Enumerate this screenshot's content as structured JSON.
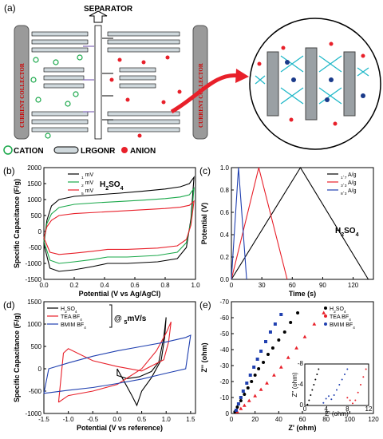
{
  "figure": {
    "panel_a": {
      "label": "(a)",
      "separator": "SEPARATOR",
      "current_collector": "CURRENT COLLECTOR",
      "legend": {
        "cation": "CATION",
        "lrgonr": "LRGONR",
        "anion": "ANION"
      }
    }
  },
  "colors": {
    "black": "#000000",
    "red": "#e8202a",
    "blue": "#2040b0",
    "green": "#1aa84a",
    "cyan": "#20b8c8"
  },
  "chart_data": [
    {
      "id": "b",
      "panel_label": "(b)",
      "type": "line",
      "xlabel": "Potential (V vs Ag/AgCl)",
      "ylabel": "Specific Capacitance (F/g)",
      "xlim": [
        0.0,
        1.0
      ],
      "ylim": [
        -1500,
        2000
      ],
      "xticks": [
        0.0,
        0.2,
        0.4,
        0.6,
        0.8,
        1.0
      ],
      "xticklabels": [
        "0.0",
        "0.2",
        "0.4",
        "0.6",
        "0.8",
        "1.0"
      ],
      "yticks": [
        -1500,
        -1000,
        -500,
        0,
        500,
        1000,
        1500,
        2000
      ],
      "yticklabels": [
        "-1500",
        "-1000",
        "-500",
        "0",
        "500",
        "1000",
        "1500",
        "2000"
      ],
      "annotation": "H2SO4",
      "series": [
        {
          "name": "1 mV",
          "color": "#000000",
          "upper": [
            [
              0.0,
              -400
            ],
            [
              0.02,
              350
            ],
            [
              0.05,
              800
            ],
            [
              0.1,
              1000
            ],
            [
              0.2,
              1100
            ],
            [
              0.35,
              1150
            ],
            [
              0.5,
              1200
            ],
            [
              0.65,
              1260
            ],
            [
              0.8,
              1330
            ],
            [
              0.9,
              1400
            ],
            [
              0.96,
              1500
            ],
            [
              0.99,
              1700
            ]
          ],
          "lower": [
            [
              0.99,
              1700
            ],
            [
              0.97,
              400
            ],
            [
              0.94,
              -500
            ],
            [
              0.88,
              -850
            ],
            [
              0.75,
              -950
            ],
            [
              0.55,
              -1000
            ],
            [
              0.42,
              -1000
            ],
            [
              0.32,
              -1100
            ],
            [
              0.2,
              -1200
            ],
            [
              0.1,
              -1250
            ],
            [
              0.04,
              -1150
            ],
            [
              0.0,
              -400
            ]
          ]
        },
        {
          "name": "2 mV",
          "color": "#1aa84a",
          "upper": [
            [
              0.0,
              -300
            ],
            [
              0.02,
              250
            ],
            [
              0.05,
              550
            ],
            [
              0.1,
              750
            ],
            [
              0.2,
              850
            ],
            [
              0.35,
              900
            ],
            [
              0.5,
              940
            ],
            [
              0.65,
              980
            ],
            [
              0.8,
              1030
            ],
            [
              0.9,
              1080
            ],
            [
              0.96,
              1150
            ],
            [
              0.99,
              1350
            ]
          ],
          "lower": [
            [
              0.99,
              1350
            ],
            [
              0.97,
              300
            ],
            [
              0.94,
              -350
            ],
            [
              0.88,
              -650
            ],
            [
              0.75,
              -750
            ],
            [
              0.55,
              -800
            ],
            [
              0.42,
              -800
            ],
            [
              0.32,
              -880
            ],
            [
              0.2,
              -950
            ],
            [
              0.1,
              -1000
            ],
            [
              0.04,
              -900
            ],
            [
              0.0,
              -300
            ]
          ]
        },
        {
          "name": "5 mV",
          "color": "#e8202a",
          "upper": [
            [
              0.0,
              -200
            ],
            [
              0.02,
              150
            ],
            [
              0.05,
              350
            ],
            [
              0.1,
              500
            ],
            [
              0.2,
              560
            ],
            [
              0.35,
              600
            ],
            [
              0.5,
              640
            ],
            [
              0.65,
              680
            ],
            [
              0.8,
              720
            ],
            [
              0.9,
              760
            ],
            [
              0.96,
              820
            ],
            [
              0.99,
              950
            ]
          ],
          "lower": [
            [
              0.99,
              950
            ],
            [
              0.97,
              200
            ],
            [
              0.94,
              -250
            ],
            [
              0.88,
              -450
            ],
            [
              0.75,
              -520
            ],
            [
              0.55,
              -560
            ],
            [
              0.42,
              -560
            ],
            [
              0.32,
              -620
            ],
            [
              0.2,
              -680
            ],
            [
              0.1,
              -720
            ],
            [
              0.04,
              -650
            ],
            [
              0.0,
              -200
            ]
          ]
        }
      ]
    },
    {
      "id": "c",
      "panel_label": "(c)",
      "type": "line",
      "xlabel": "Time (s)",
      "ylabel": "Potential (V)",
      "xlim": [
        0,
        140
      ],
      "ylim": [
        0.0,
        1.0
      ],
      "xticks": [
        0,
        30,
        60,
        90,
        120
      ],
      "xticklabels": [
        "0",
        "30",
        "60",
        "90",
        "120"
      ],
      "yticks": [
        0.0,
        0.2,
        0.4,
        0.6,
        0.8,
        1.0
      ],
      "yticklabels": [
        "0.0",
        "0.2",
        "0.4",
        "0.6",
        "0.8",
        "1.0"
      ],
      "annotation": "H2SO4",
      "series": [
        {
          "name": "1.7 A/g",
          "color": "#000000",
          "points": [
            [
              0,
              0
            ],
            [
              68,
              1.0
            ],
            [
              135,
              0
            ]
          ]
        },
        {
          "name": "3.3 A/g",
          "color": "#e8202a",
          "points": [
            [
              0,
              0
            ],
            [
              27,
              1.0
            ],
            [
              55,
              0
            ]
          ]
        },
        {
          "name": "8.3 A/g",
          "color": "#2040b0",
          "points": [
            [
              0,
              0
            ],
            [
              7,
              1.0
            ],
            [
              15,
              0
            ]
          ]
        }
      ]
    },
    {
      "id": "d",
      "panel_label": "(d)",
      "type": "line",
      "xlabel": "Potential (V vs reference)",
      "ylabel": "Specific Capacitance (F/g)",
      "xlim": [
        -1.5,
        1.6
      ],
      "ylim": [
        -1000,
        1500
      ],
      "xticks": [
        -1.5,
        -1.0,
        -0.5,
        0.0,
        0.5,
        1.0,
        1.5
      ],
      "xticklabels": [
        "-1.5",
        "-1.0",
        "-0.5",
        "0.0",
        "0.5",
        "1.0",
        "1.5"
      ],
      "yticks": [
        -1000,
        -500,
        0,
        500,
        1000,
        1500
      ],
      "yticklabels": [
        "-1000",
        "-500",
        "0",
        "500",
        "1000",
        "1500"
      ],
      "annotation": "@ 5mV/s",
      "series": [
        {
          "name": "H2SO4",
          "color": "#000000",
          "points": [
            [
              0,
              0
            ],
            [
              0,
              -150
            ],
            [
              0.2,
              -220
            ],
            [
              0.45,
              -180
            ],
            [
              0.7,
              -60
            ],
            [
              0.85,
              150
            ],
            [
              0.95,
              700
            ],
            [
              1.0,
              1150
            ],
            [
              0.97,
              700
            ],
            [
              0.9,
              200
            ],
            [
              0.7,
              -200
            ],
            [
              0.5,
              -500
            ],
            [
              0.4,
              -820
            ],
            [
              0.3,
              -600
            ],
            [
              0.15,
              -300
            ],
            [
              0,
              0
            ]
          ]
        },
        {
          "name": "TEA BF4",
          "color": "#e8202a",
          "points": [
            [
              -1.2,
              -750
            ],
            [
              -1.0,
              -600
            ],
            [
              -0.5,
              -500
            ],
            [
              0.0,
              -350
            ],
            [
              0.5,
              0
            ],
            [
              0.8,
              400
            ],
            [
              1.0,
              800
            ],
            [
              1.1,
              1050
            ],
            [
              1.05,
              600
            ],
            [
              0.95,
              200
            ],
            [
              0.5,
              -50
            ],
            [
              0.0,
              50
            ],
            [
              -0.5,
              180
            ],
            [
              -1.0,
              450
            ],
            [
              -1.1,
              350
            ],
            [
              -1.2,
              -750
            ]
          ]
        },
        {
          "name": "BMIM BF4",
          "color": "#2040b0",
          "points": [
            [
              -1.5,
              -550
            ],
            [
              -1.0,
              -480
            ],
            [
              -0.5,
              -420
            ],
            [
              0.0,
              -330
            ],
            [
              0.5,
              -230
            ],
            [
              1.0,
              -100
            ],
            [
              1.4,
              0
            ],
            [
              1.5,
              750
            ],
            [
              1.4,
              700
            ],
            [
              1.0,
              600
            ],
            [
              0.5,
              500
            ],
            [
              0.0,
              400
            ],
            [
              -0.5,
              280
            ],
            [
              -1.0,
              130
            ],
            [
              -1.4,
              0
            ],
            [
              -1.5,
              -550
            ]
          ]
        }
      ]
    },
    {
      "id": "e",
      "panel_label": "(e)",
      "type": "scatter",
      "xlabel": "Z' (ohm)",
      "ylabel": "Z'' (ohm)",
      "xlim": [
        0,
        120
      ],
      "ylim": [
        0,
        -70
      ],
      "xticks": [
        0,
        20,
        40,
        60,
        80,
        100,
        120
      ],
      "xticklabels": [
        "0",
        "20",
        "40",
        "60",
        "80",
        "100",
        "120"
      ],
      "yticks": [
        0,
        -10,
        -20,
        -30,
        -40,
        -50,
        -60,
        -70
      ],
      "yticklabels": [
        "0",
        "-10",
        "-20",
        "-30",
        "-40",
        "-50",
        "-60",
        "-70"
      ],
      "series": [
        {
          "name": "H2SO4",
          "color": "#000000",
          "marker": "circle",
          "points": [
            [
              3,
              -1
            ],
            [
              5,
              -4
            ],
            [
              8,
              -8
            ],
            [
              11,
              -12
            ],
            [
              14,
              -16
            ],
            [
              17,
              -20
            ],
            [
              20,
              -24
            ],
            [
              23,
              -28
            ],
            [
              27,
              -32
            ],
            [
              31,
              -37
            ],
            [
              35,
              -41
            ],
            [
              40,
              -46
            ],
            [
              45,
              -51
            ],
            [
              50,
              -57
            ],
            [
              56,
              -63
            ]
          ]
        },
        {
          "name": "TEA BF4",
          "color": "#e8202a",
          "marker": "triangle",
          "points": [
            [
              5,
              -1
            ],
            [
              8,
              -3
            ],
            [
              11,
              -5
            ],
            [
              15,
              -8
            ],
            [
              20,
              -11
            ],
            [
              25,
              -15
            ],
            [
              30,
              -19
            ],
            [
              36,
              -24
            ],
            [
              42,
              -29
            ],
            [
              48,
              -35
            ],
            [
              55,
              -41
            ],
            [
              62,
              -48
            ],
            [
              70,
              -56
            ],
            [
              78,
              -63
            ]
          ]
        },
        {
          "name": "BMIM BF4",
          "color": "#2040b0",
          "marker": "square",
          "points": [
            [
              4,
              -2
            ],
            [
              6,
              -6
            ],
            [
              8,
              -10
            ],
            [
              10,
              -14
            ],
            [
              13,
              -19
            ],
            [
              16,
              -24
            ],
            [
              19,
              -29
            ],
            [
              22,
              -34
            ],
            [
              25,
              -39
            ],
            [
              29,
              -45
            ],
            [
              33,
              -51
            ],
            [
              37,
              -56
            ],
            [
              42,
              -62
            ]
          ]
        }
      ],
      "inset": {
        "xlabel": "Z' (ohm)",
        "ylabel": "Z'' (ohm)",
        "xlim": [
          0,
          12
        ],
        "ylim": [
          0,
          -8
        ],
        "xticks": [
          0,
          4,
          8,
          12
        ],
        "xticklabels": [
          "0",
          "4",
          "8",
          "12"
        ],
        "yticks": [
          0,
          -4,
          -8
        ],
        "yticklabels": [
          "0",
          "-4",
          "-8"
        ],
        "series": [
          {
            "name": "H2SO4",
            "color": "#000000",
            "points": [
              [
                0.5,
                -0.2
              ],
              [
                0.8,
                -1
              ],
              [
                1.1,
                -2
              ],
              [
                1.4,
                -3
              ],
              [
                1.7,
                -4
              ],
              [
                2.0,
                -5
              ],
              [
                2.3,
                -6
              ],
              [
                2.6,
                -7
              ]
            ]
          },
          {
            "name": "BMIM BF4",
            "color": "#2040b0",
            "points": [
              [
                3.5,
                -0.5
              ],
              [
                4,
                -1.3
              ],
              [
                4.5,
                -1.8
              ],
              [
                5,
                -1.2
              ],
              [
                5.5,
                -2
              ],
              [
                6,
                -3
              ],
              [
                6.5,
                -4
              ],
              [
                7,
                -5
              ],
              [
                7.5,
                -6
              ],
              [
                8,
                -7
              ]
            ]
          },
          {
            "name": "TEA BF4",
            "color": "#e8202a",
            "points": [
              [
                8,
                -1.5
              ],
              [
                8.5,
                -1
              ],
              [
                9,
                -0.4
              ],
              [
                9.5,
                -1
              ],
              [
                10,
                -2.5
              ],
              [
                10.5,
                -4
              ],
              [
                11,
                -5.5
              ],
              [
                11.5,
                -7
              ]
            ]
          }
        ]
      }
    }
  ]
}
